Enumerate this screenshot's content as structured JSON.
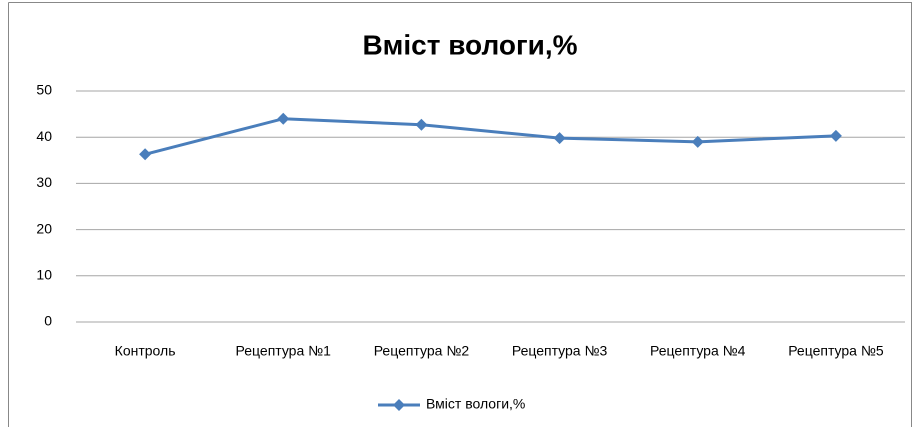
{
  "chart_data": {
    "type": "line",
    "title": "Вміст вологи,%",
    "categories": [
      "Контроль",
      "Рецептура №1",
      "Рецептура №2",
      "Рецептура №3",
      "Рецептура №4",
      "Рецептура №5"
    ],
    "series": [
      {
        "name": "Вміст вологи,%",
        "color": "#4a7ebb",
        "values": [
          36.3,
          44,
          42.7,
          39.8,
          39,
          40.3
        ]
      }
    ],
    "ylim": [
      0,
      50
    ],
    "yticks": [
      0,
      10,
      20,
      30,
      40,
      50
    ],
    "grid": true,
    "legend": "bottom"
  }
}
